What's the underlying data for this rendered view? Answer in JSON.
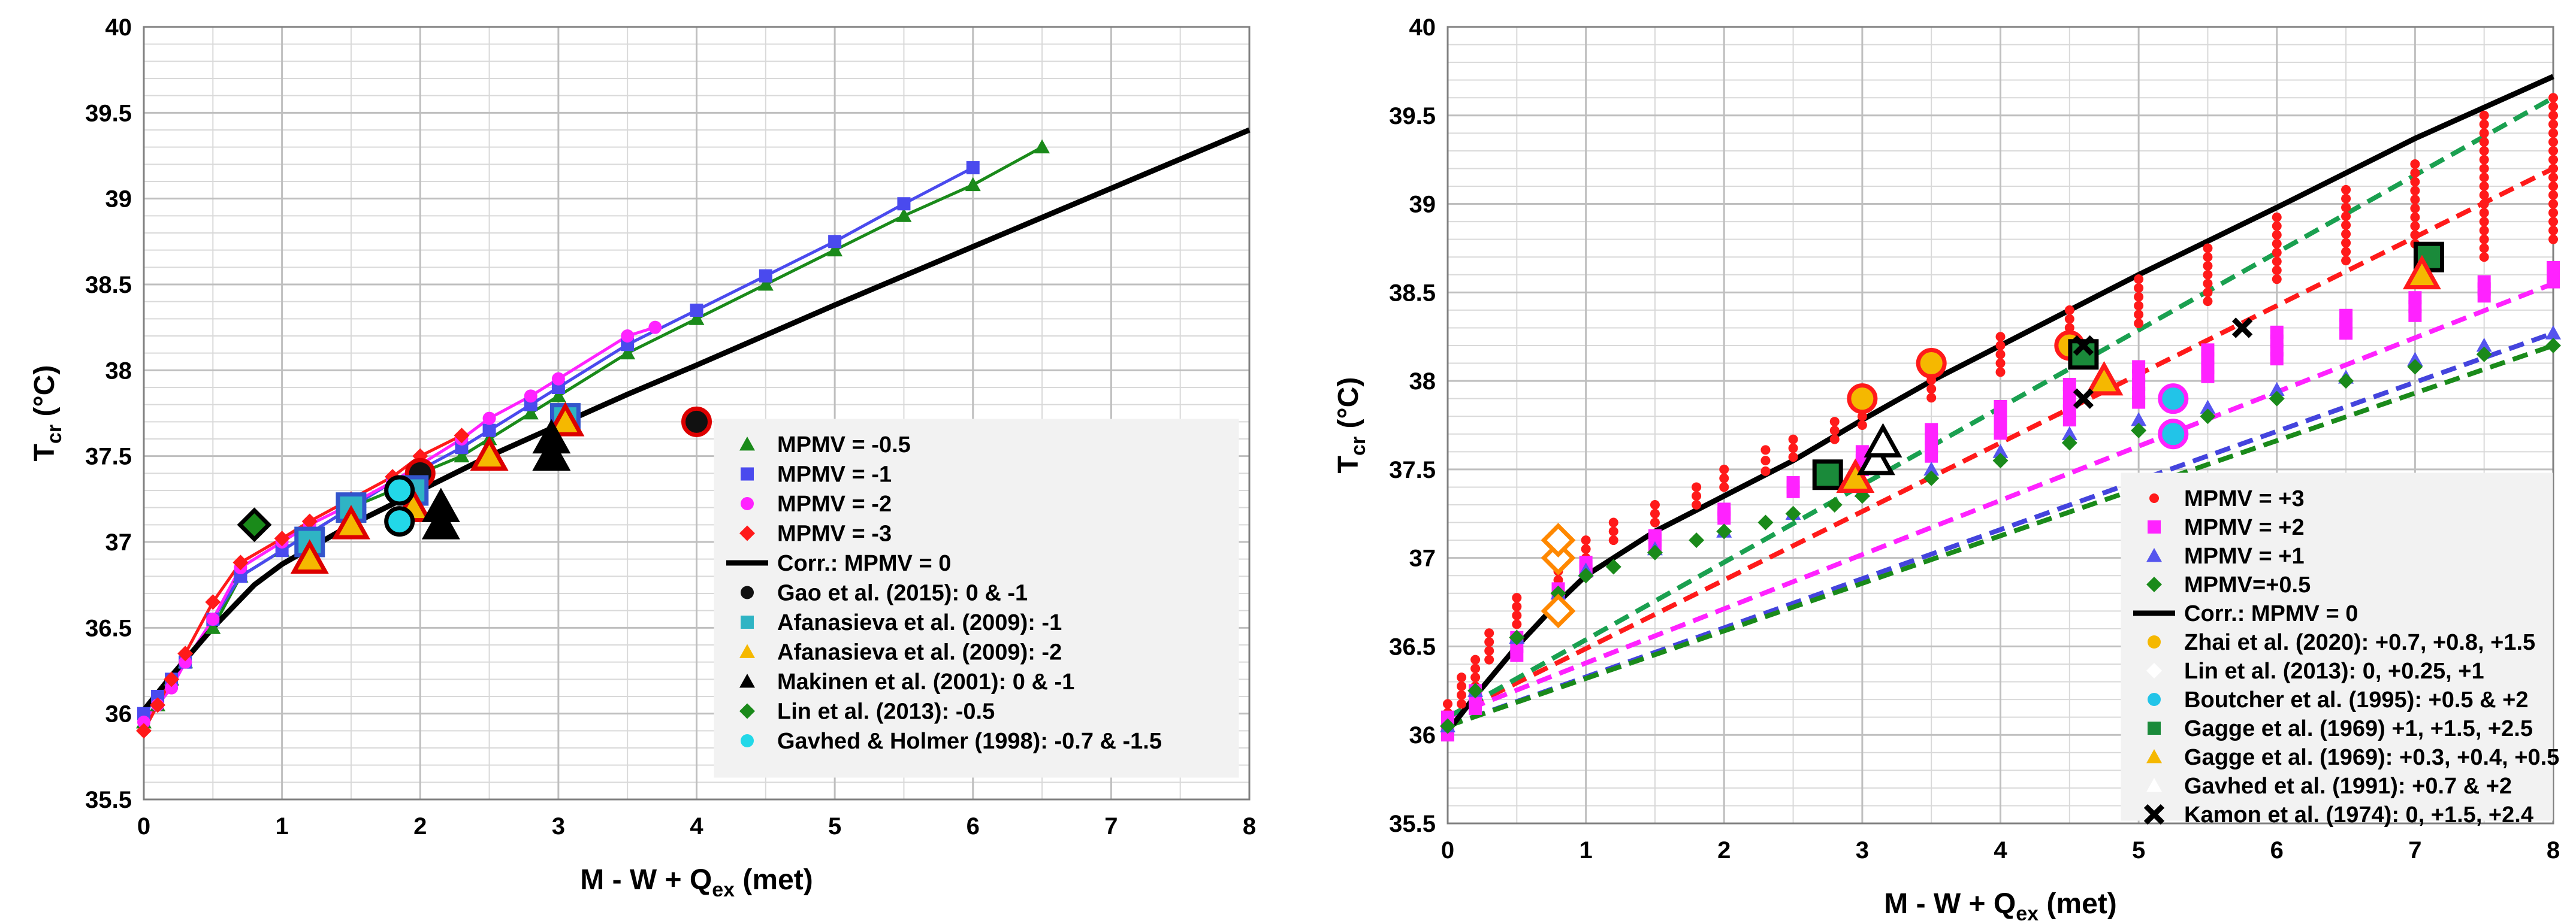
{
  "chart_data": [
    {
      "type": "scatter",
      "xlabel": "M - W +  Q",
      "xlabel_sub": "ex",
      "xlabel_unit": " (met)",
      "ylabel": "T",
      "ylabel_sub": "cr",
      "ylabel_unit": " (°C)",
      "xlim": [
        0,
        8
      ],
      "ylim": [
        35.5,
        40
      ],
      "xticks": [
        "0",
        "1",
        "2",
        "3",
        "4",
        "5",
        "6",
        "7",
        "8"
      ],
      "yticks": [
        "35.5",
        "36",
        "36.5",
        "37",
        "37.5",
        "38",
        "38.5",
        "39",
        "39.5",
        "40"
      ],
      "legend_position": "lower-right",
      "series": [
        {
          "name": "MPMV = -0.5",
          "marker": "triangle",
          "color": "#1a8a1a",
          "line": true,
          "x": [
            0,
            0.1,
            0.2,
            0.3,
            0.5,
            0.7,
            1,
            1.2,
            1.5,
            1.8,
            2,
            2.3,
            2.5,
            2.8,
            3,
            3.5,
            4,
            4.5,
            5,
            5.5,
            6,
            6.5
          ],
          "y": [
            35.95,
            36.05,
            36.2,
            36.3,
            36.5,
            36.8,
            36.95,
            37.05,
            37.2,
            37.3,
            37.4,
            37.5,
            37.6,
            37.75,
            37.85,
            38.1,
            38.3,
            38.5,
            38.7,
            38.9,
            39.08,
            39.3
          ]
        },
        {
          "name": "MPMV = -1",
          "marker": "square",
          "color": "#4a4aee",
          "line": true,
          "x": [
            0,
            0.1,
            0.2,
            0.3,
            0.5,
            0.7,
            1,
            1.2,
            1.5,
            1.8,
            2,
            2.3,
            2.5,
            2.8,
            3,
            3.5,
            4,
            4.5,
            5,
            5.5,
            6
          ],
          "y": [
            36.0,
            36.1,
            36.2,
            36.3,
            36.55,
            36.8,
            36.95,
            37.05,
            37.2,
            37.35,
            37.42,
            37.55,
            37.65,
            37.8,
            37.9,
            38.15,
            38.35,
            38.55,
            38.75,
            38.97,
            39.18
          ]
        },
        {
          "name": "MPMV = -2",
          "marker": "circle",
          "color": "#ff22ff",
          "line": true,
          "x": [
            0,
            0.1,
            0.2,
            0.3,
            0.5,
            0.7,
            1,
            1.2,
            1.5,
            1.8,
            2,
            2.3,
            2.5,
            2.8,
            3,
            3.5,
            3.7
          ],
          "y": [
            35.95,
            36.05,
            36.15,
            36.3,
            36.55,
            36.85,
            37.0,
            37.1,
            37.22,
            37.35,
            37.45,
            37.6,
            37.72,
            37.85,
            37.95,
            38.2,
            38.25
          ]
        },
        {
          "name": "MPMV = -3",
          "marker": "diamond",
          "color": "#ff1a1a",
          "line": true,
          "x": [
            0,
            0.1,
            0.2,
            0.3,
            0.5,
            0.7,
            1,
            1.2,
            1.5,
            1.8,
            2,
            2.3
          ],
          "y": [
            35.9,
            36.05,
            36.2,
            36.35,
            36.65,
            36.88,
            37.02,
            37.12,
            37.25,
            37.38,
            37.5,
            37.62
          ]
        },
        {
          "name": "Corr.: MPMV = 0",
          "marker": "line",
          "color": "#000000",
          "line": true,
          "x": [
            0,
            0.2,
            0.5,
            0.8,
            1,
            1.5,
            2,
            2.5,
            3,
            3.5,
            4,
            5,
            6,
            7,
            8
          ],
          "y": [
            36.02,
            36.22,
            36.5,
            36.75,
            36.87,
            37.1,
            37.3,
            37.5,
            37.68,
            37.86,
            38.03,
            38.38,
            38.72,
            39.06,
            39.4
          ]
        },
        {
          "name": "Gao et al. (2015): 0 & -1",
          "marker": "bigcircle",
          "color": "#111111",
          "edge": "#dd0000",
          "x": [
            2.0,
            4.0
          ],
          "y": [
            37.4,
            37.7
          ]
        },
        {
          "name": "Afanasieva et al. (2009): -1",
          "marker": "bigsquare",
          "color": "#2fb4c4",
          "edge": "#3355cc",
          "x": [
            1.2,
            1.5,
            1.95,
            3.05
          ],
          "y": [
            37.0,
            37.2,
            37.3,
            37.72
          ]
        },
        {
          "name": "Afanasieva et al. (2009): -2",
          "marker": "bigtriangle",
          "color": "#f5b800",
          "edge": "#dd0000",
          "x": [
            1.2,
            1.5,
            1.95,
            2.5,
            3.05
          ],
          "y": [
            36.9,
            37.1,
            37.2,
            37.5,
            37.7
          ]
        },
        {
          "name": "Makinen et al. (2001): 0 & -1",
          "marker": "bigtriangle",
          "color": "#000000",
          "edge": "#000000",
          "x": [
            2.15,
            2.95,
            2.95,
            2.15
          ],
          "y": [
            37.1,
            37.5,
            37.6,
            37.2
          ]
        },
        {
          "name": "Lin et al. (2013): -0.5",
          "marker": "bigdiamond",
          "color": "#1a8a1a",
          "edge": "#000000",
          "x": [
            0.8
          ],
          "y": [
            37.1
          ]
        },
        {
          "name": "Gavhed & Holmer (1998): -0.7 & -1.5",
          "marker": "bigcircle",
          "color": "#22d8e8",
          "edge": "#000000",
          "x": [
            1.85,
            1.85
          ],
          "y": [
            37.3,
            37.12
          ]
        }
      ]
    },
    {
      "type": "scatter",
      "xlabel": "M - W +  Q",
      "xlabel_sub": "ex",
      "xlabel_unit": " (met)",
      "ylabel": "T",
      "ylabel_sub": "cr",
      "ylabel_unit": " (°C)",
      "xlim": [
        0,
        8
      ],
      "ylim": [
        35.5,
        40
      ],
      "xticks": [
        "0",
        "1",
        "2",
        "3",
        "4",
        "5",
        "6",
        "7",
        "8"
      ],
      "yticks": [
        "35.5",
        "36",
        "36.5",
        "37",
        "37.5",
        "38",
        "38.5",
        "39",
        "39.5",
        "40"
      ],
      "legend_position": "lower-right",
      "series": [
        {
          "name": "MPMV = +3",
          "marker": "dot",
          "color": "#ff1a1a",
          "x": [
            0,
            0.1,
            0.2,
            0.3,
            0.5,
            0.8,
            1,
            1.2,
            1.5,
            1.8,
            2,
            2.3,
            2.5,
            2.8,
            3,
            3.5,
            4,
            4.5,
            5,
            5.5,
            6,
            6.5,
            7,
            7.5,
            8
          ],
          "y": [
            36.1,
            36.25,
            36.35,
            36.5,
            36.7,
            36.95,
            37.05,
            37.15,
            37.25,
            37.35,
            37.45,
            37.55,
            37.62,
            37.72,
            37.8,
            37.98,
            38.15,
            38.3,
            38.45,
            38.6,
            38.75,
            38.88,
            39.0,
            39.1,
            39.2
          ],
          "spread": [
            0.15,
            0.15,
            0.15,
            0.15,
            0.15,
            0.15,
            0.1,
            0.1,
            0.1,
            0.1,
            0.1,
            0.12,
            0.1,
            0.1,
            0.1,
            0.15,
            0.2,
            0.2,
            0.25,
            0.3,
            0.35,
            0.4,
            0.45,
            0.8,
            0.8
          ]
        },
        {
          "name": "MPMV = +2",
          "marker": "square-small",
          "color": "#ff22ff",
          "x": [
            0,
            0.2,
            0.5,
            0.8,
            1,
            1.5,
            2,
            2.5,
            3,
            3.5,
            4,
            4.5,
            5,
            5.5,
            6,
            6.5,
            7,
            7.5,
            8
          ],
          "y": [
            36.05,
            36.2,
            36.5,
            36.8,
            36.95,
            37.1,
            37.25,
            37.4,
            37.55,
            37.65,
            37.78,
            37.88,
            37.98,
            38.1,
            38.2,
            38.32,
            38.42,
            38.52,
            38.6
          ],
          "spread": [
            0.1,
            0.1,
            0.1,
            0.05,
            0.05,
            0.05,
            0.05,
            0.05,
            0.1,
            0.15,
            0.15,
            0.2,
            0.2,
            0.15,
            0.15,
            0.1,
            0.1,
            0.08,
            0.08
          ]
        },
        {
          "name": "MPMV = +1",
          "marker": "triangle-small",
          "color": "#5555ee",
          "x": [
            0,
            0.2,
            0.5,
            0.8,
            1,
            1.5,
            2,
            2.5,
            3,
            3.5,
            4,
            4.5,
            5,
            5.5,
            6,
            6.5,
            7,
            7.5,
            8
          ],
          "y": [
            36.05,
            36.25,
            36.55,
            36.8,
            36.93,
            37.05,
            37.15,
            37.25,
            37.38,
            37.5,
            37.6,
            37.7,
            37.78,
            37.85,
            37.95,
            38.02,
            38.12,
            38.2,
            38.27
          ],
          "spread": [
            0,
            0,
            0,
            0,
            0,
            0,
            0,
            0,
            0,
            0,
            0,
            0,
            0,
            0,
            0,
            0,
            0,
            0,
            0
          ]
        },
        {
          "name": "MPMV=+0.5",
          "marker": "diamond-small",
          "color": "#1a8a1a",
          "x": [
            0,
            0.2,
            0.5,
            0.8,
            1,
            1.2,
            1.5,
            1.8,
            2,
            2.3,
            2.5,
            2.8,
            3,
            3.5,
            4,
            4.5,
            5,
            5.5,
            6,
            6.5,
            7,
            7.5,
            8
          ],
          "y": [
            36.05,
            36.25,
            36.55,
            36.8,
            36.9,
            36.95,
            37.03,
            37.1,
            37.15,
            37.2,
            37.25,
            37.3,
            37.35,
            37.45,
            37.55,
            37.65,
            37.72,
            37.8,
            37.9,
            38.0,
            38.08,
            38.15,
            38.2
          ],
          "spread": [
            0,
            0,
            0,
            0,
            0,
            0,
            0,
            0,
            0,
            0,
            0,
            0,
            0,
            0,
            0,
            0,
            0,
            0,
            0,
            0,
            0,
            0,
            0
          ]
        },
        {
          "name": "Corr.: MPMV = 0",
          "marker": "line",
          "color": "#000000",
          "x": [
            0,
            0.2,
            0.5,
            0.8,
            1,
            1.5,
            2,
            2.5,
            3,
            3.5,
            4,
            5,
            6,
            7,
            8
          ],
          "y": [
            36.02,
            36.22,
            36.5,
            36.75,
            36.9,
            37.15,
            37.35,
            37.55,
            37.78,
            38.0,
            38.2,
            38.6,
            38.98,
            39.37,
            39.72
          ]
        },
        {
          "name": "Zhai et al. (2020): +0.7, +0.8, +1.5",
          "marker": "bigcircle",
          "color": "#f5b800",
          "edge": "#ff1a1a",
          "x": [
            3.0,
            3.5,
            4.5
          ],
          "y": [
            37.9,
            38.1,
            38.2
          ]
        },
        {
          "name": "Lin et al. (2013): 0, +0.25, +1",
          "marker": "bigdiamond",
          "color": "#ffffff",
          "edge": "#ff8800",
          "x": [
            0.8,
            0.8,
            0.8
          ],
          "y": [
            36.7,
            37.0,
            37.1
          ]
        },
        {
          "name": "Boutcher et al. (1995): +0.5 & +2",
          "marker": "bigcircle",
          "color": "#22c4e8",
          "edge": "#ff22ff",
          "x": [
            5.25,
            5.25
          ],
          "y": [
            37.7,
            37.9
          ]
        },
        {
          "name": "Gagge et al. (1969) +1, +1.5, +2.5",
          "marker": "bigsquare",
          "color": "#1a8a3a",
          "edge": "#000000",
          "x": [
            2.75,
            4.6,
            7.1
          ],
          "y": [
            37.47,
            38.15,
            38.7
          ]
        },
        {
          "name": "Gagge et al. (1969): +0.3, +0.4, +0.5",
          "marker": "bigtriangle",
          "color": "#f5b800",
          "edge": "#ff1a1a",
          "x": [
            2.95,
            4.75,
            7.05
          ],
          "y": [
            37.45,
            38.0,
            38.6
          ]
        },
        {
          "name": "Gavhed et al. (1991): +0.7 & +2",
          "marker": "bigtriangle",
          "color": "#ffffff",
          "edge": "#000000",
          "x": [
            3.1,
            3.15
          ],
          "y": [
            37.55,
            37.65
          ]
        },
        {
          "name": "Kamon et al. (1974): 0, +1.5,  +2.4",
          "marker": "cross",
          "color": "#000000",
          "x": [
            4.6,
            4.6,
            5.75
          ],
          "y": [
            37.9,
            38.2,
            38.3
          ]
        }
      ],
      "trend_lines": [
        {
          "color": "#ff1a1a",
          "x": [
            0,
            8
          ],
          "y": [
            36.1,
            39.2
          ]
        },
        {
          "color": "#ff22ff",
          "x": [
            0,
            8
          ],
          "y": [
            36.1,
            38.55
          ]
        },
        {
          "color": "#4444dd",
          "x": [
            0,
            8
          ],
          "y": [
            36.05,
            38.27
          ]
        },
        {
          "color": "#1a8a1a",
          "x": [
            0,
            8
          ],
          "y": [
            36.05,
            38.2
          ]
        },
        {
          "color": "#1aa050",
          "x": [
            0,
            8
          ],
          "y": [
            36.1,
            39.6
          ]
        }
      ]
    }
  ]
}
